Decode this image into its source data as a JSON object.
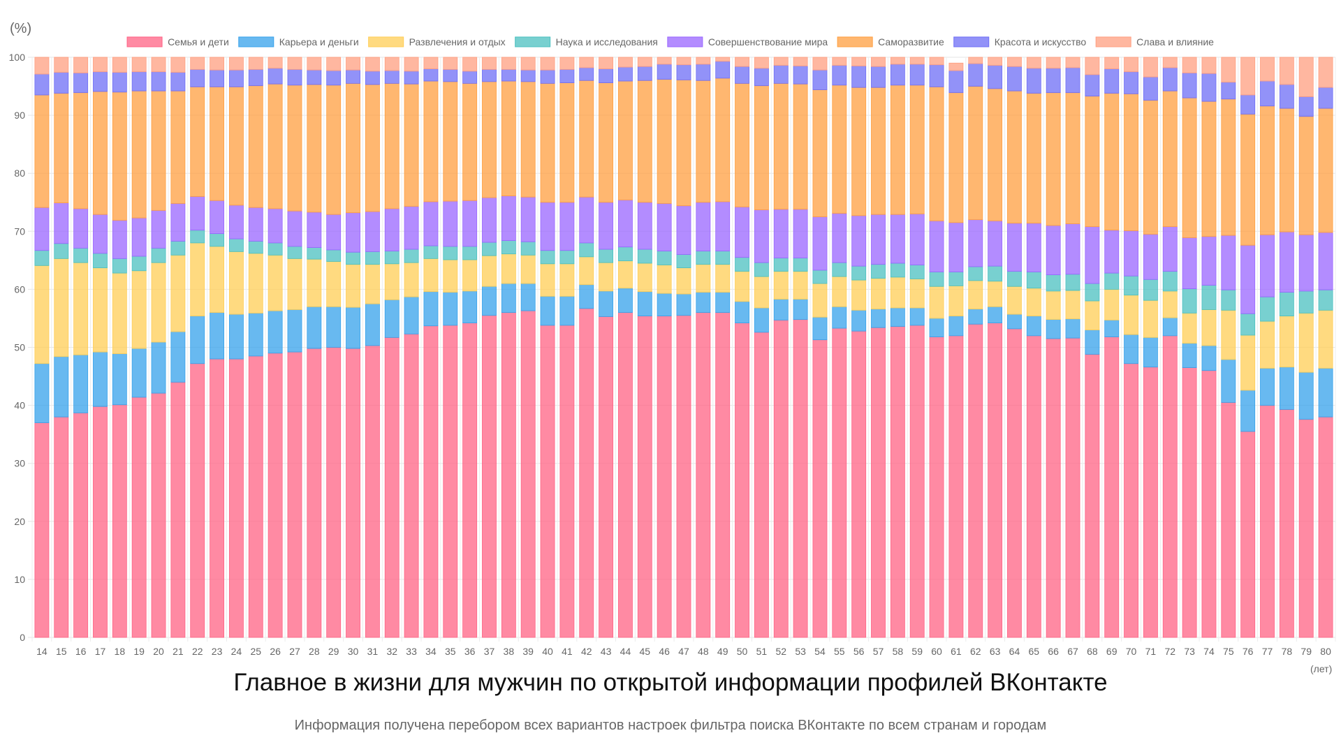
{
  "chart_data": {
    "type": "bar",
    "stacked": true,
    "title": "Главное в жизни для мужчин по открытой информации профилей ВКонтакте",
    "subtitle": "Информация получена перебором всех вариантов настроек фильтра поиска ВКонтакте по всем странам и городам",
    "ylabel": "(%)",
    "xlabel": "(лет)",
    "ylim": [
      0,
      100
    ],
    "yticks": [
      0,
      10,
      20,
      30,
      40,
      50,
      60,
      70,
      80,
      90,
      100
    ],
    "grid": true,
    "legend_position": "top",
    "categories": [
      "14",
      "15",
      "16",
      "17",
      "18",
      "19",
      "20",
      "21",
      "22",
      "23",
      "24",
      "25",
      "26",
      "27",
      "28",
      "29",
      "30",
      "31",
      "32",
      "33",
      "34",
      "35",
      "36",
      "37",
      "38",
      "39",
      "40",
      "41",
      "42",
      "43",
      "44",
      "45",
      "46",
      "47",
      "48",
      "49",
      "50",
      "51",
      "52",
      "53",
      "54",
      "55",
      "56",
      "57",
      "58",
      "59",
      "60",
      "61",
      "62",
      "63",
      "64",
      "65",
      "66",
      "67",
      "68",
      "69",
      "70",
      "71",
      "72",
      "73",
      "74",
      "75",
      "76",
      "77",
      "78",
      "79",
      "80"
    ],
    "series": [
      {
        "name": "Семья и дети",
        "color": "#ff6384",
        "values": [
          37,
          38,
          38.7,
          39.8,
          40.1,
          41.4,
          42.1,
          44,
          47.2,
          48,
          48,
          48.5,
          49,
          49.2,
          49.8,
          50,
          49.8,
          50.3,
          51.7,
          52.3,
          53.7,
          53.8,
          54.2,
          55.5,
          56,
          56.3,
          53.8,
          53.8,
          56.7,
          55.3,
          56,
          55.4,
          55.4,
          55.5,
          56,
          56,
          54.2,
          52.6,
          54.7,
          54.8,
          51.3,
          53.3,
          52.8,
          53.4,
          53.6,
          53.8,
          51.8,
          52,
          54,
          54.2,
          53.2,
          52,
          51.5,
          51.6,
          48.8,
          51.8,
          47.2,
          46.6,
          52,
          46.5,
          46,
          40.5,
          35.5,
          40,
          39.3,
          37.6,
          38
        ]
      },
      {
        "name": "Карьера и деньги",
        "color": "#36a2eb",
        "values": [
          10.2,
          10.4,
          10,
          9.4,
          8.8,
          8.4,
          8.8,
          8.7,
          8.2,
          8,
          7.7,
          7.4,
          7.3,
          7.3,
          7.2,
          7,
          7.1,
          7.2,
          6.5,
          6.4,
          5.9,
          5.7,
          5.5,
          5,
          5,
          4.7,
          5,
          5,
          4.1,
          4.4,
          4.2,
          4.2,
          3.9,
          3.7,
          3.5,
          3.5,
          3.7,
          4.2,
          3.6,
          3.5,
          3.9,
          3.7,
          3.6,
          3.2,
          3.2,
          3,
          3.2,
          3.4,
          2.6,
          2.8,
          2.5,
          3.4,
          3.3,
          3.3,
          4.2,
          2.9,
          5,
          5.1,
          3.1,
          4.2,
          4.3,
          7.4,
          7.1,
          6.4,
          7.3,
          8.1,
          8.4
        ]
      },
      {
        "name": "Развлечения и отдых",
        "color": "#ffcd56",
        "values": [
          16.9,
          16.9,
          15.9,
          14.5,
          13.9,
          13.4,
          13.7,
          13.2,
          12.6,
          11.4,
          10.8,
          10.3,
          9.6,
          8.8,
          8.2,
          7.8,
          7.4,
          6.8,
          6.2,
          5.9,
          5.7,
          5.6,
          5.4,
          5.3,
          5.1,
          4.9,
          5.6,
          5.6,
          4.8,
          4.9,
          4.7,
          4.9,
          4.9,
          4.5,
          4.8,
          4.8,
          5.2,
          5.4,
          4.8,
          4.8,
          5.8,
          5.2,
          5.2,
          5.3,
          5.3,
          5,
          5.5,
          5.2,
          4.9,
          4.4,
          4.8,
          4.8,
          4.9,
          4.9,
          5,
          5.3,
          6.8,
          6.4,
          4.6,
          5.2,
          6.2,
          8.5,
          9.5,
          8.1,
          8.8,
          10.2,
          10
        ]
      },
      {
        "name": "Наука и исследования",
        "color": "#4bc0c0",
        "values": [
          2.6,
          2.6,
          2.5,
          2.5,
          2.5,
          2.5,
          2.5,
          2.4,
          2.2,
          2.2,
          2.2,
          2.1,
          2.1,
          2.1,
          2,
          2,
          2.1,
          2.2,
          2.2,
          2.3,
          2.2,
          2.3,
          2.3,
          2.3,
          2.3,
          2.3,
          2.3,
          2.3,
          2.4,
          2.3,
          2.4,
          2.4,
          2.4,
          2.3,
          2.3,
          2.3,
          2.4,
          2.4,
          2.3,
          2.3,
          2.3,
          2.4,
          2.4,
          2.4,
          2.4,
          2.4,
          2.5,
          2.4,
          2.4,
          2.6,
          2.6,
          2.8,
          2.8,
          2.8,
          3,
          2.8,
          3.3,
          3.6,
          3.4,
          4.2,
          4.2,
          3.5,
          3.7,
          4.2,
          4.1,
          3.8,
          3.5
        ]
      },
      {
        "name": "Совершенствование мира",
        "color": "#9966ff",
        "values": [
          7.4,
          7,
          6.8,
          6.7,
          6.6,
          6.6,
          6.5,
          6.5,
          5.8,
          5.7,
          5.8,
          5.8,
          5.9,
          6.1,
          6.1,
          6.1,
          6.8,
          6.9,
          7.3,
          7.4,
          7.6,
          7.8,
          7.9,
          7.7,
          7.7,
          7.7,
          8.3,
          8.3,
          7.9,
          8.1,
          8.1,
          8.1,
          8.2,
          8.4,
          8.4,
          8.5,
          8.7,
          9.1,
          8.4,
          8.4,
          9.2,
          8.5,
          8.7,
          8.6,
          8.4,
          8.8,
          8.8,
          8.5,
          8.1,
          7.8,
          8.3,
          8.4,
          8.5,
          8.7,
          9.8,
          7.4,
          7.8,
          7.8,
          7.7,
          8.8,
          8.4,
          9.4,
          11.8,
          10.7,
          10.4,
          9.7,
          9.9
        ]
      },
      {
        "name": "Саморазвитие",
        "color": "#ff9f40",
        "values": [
          19.4,
          18.9,
          20,
          21.2,
          22.1,
          21.9,
          20.6,
          19.4,
          18.9,
          19.6,
          20.4,
          21,
          21.5,
          21.7,
          22,
          22.3,
          22.3,
          21.9,
          21.6,
          21.1,
          20.8,
          20.6,
          20.2,
          20,
          19.8,
          19.9,
          20.5,
          20.6,
          20.1,
          20.6,
          20.5,
          21,
          21.4,
          21.7,
          21,
          21.3,
          21.3,
          21.4,
          21.7,
          21.6,
          21.9,
          22.1,
          22.1,
          21.9,
          22.3,
          22.2,
          23.1,
          22.4,
          23,
          22.8,
          22.8,
          22.4,
          22.9,
          22.6,
          22.5,
          23.6,
          23.6,
          23.1,
          23.4,
          24.1,
          23.3,
          23.5,
          22.6,
          22.2,
          21.3,
          20.4,
          21.4
        ]
      },
      {
        "name": "Красота и искусство",
        "color": "#6e6ef5",
        "values": [
          3.6,
          3.6,
          3.4,
          3.4,
          3.4,
          3.3,
          3.3,
          3.2,
          3,
          2.9,
          2.9,
          2.8,
          2.7,
          2.7,
          2.5,
          2.5,
          2.3,
          2.3,
          2.2,
          2.2,
          2.1,
          2.1,
          2.1,
          2.1,
          2,
          2,
          2.3,
          2.3,
          2.2,
          2.4,
          2.4,
          2.4,
          2.6,
          2.6,
          2.8,
          2.9,
          2.9,
          3,
          3.1,
          3.1,
          3.4,
          3.4,
          3.7,
          3.6,
          3.6,
          3.6,
          3.8,
          3.8,
          3.9,
          4,
          4.2,
          4.3,
          4.2,
          4.3,
          3.7,
          4.2,
          3.8,
          4,
          4,
          4.3,
          4.8,
          2.9,
          3.3,
          4.3,
          4.1,
          3.4,
          3.6
        ]
      },
      {
        "name": "Слава и влияние",
        "color": "#ff9f80",
        "values": [
          2.9,
          2.8,
          2.7,
          2.5,
          2.6,
          2.5,
          2.5,
          2.6,
          2.1,
          2.2,
          2.2,
          2.1,
          1.9,
          2.1,
          2.2,
          2.3,
          2.2,
          2.4,
          2.3,
          2.4,
          2,
          2.1,
          2.4,
          2.1,
          2.1,
          2.2,
          2.2,
          2.1,
          1.8,
          2,
          1.7,
          1.6,
          1.2,
          1.3,
          1.2,
          0.7,
          1.6,
          1.9,
          1.4,
          1.5,
          2.2,
          1.4,
          1.5,
          1.6,
          1.2,
          1.2,
          1.3,
          1.3,
          1.1,
          1.4,
          1.6,
          1.9,
          1.9,
          1.8,
          3,
          2.0,
          2.5,
          3.4,
          1.8,
          2.8,
          2.8,
          4.3,
          6.5,
          4.1,
          4.7,
          6.8,
          5.2
        ]
      }
    ]
  }
}
